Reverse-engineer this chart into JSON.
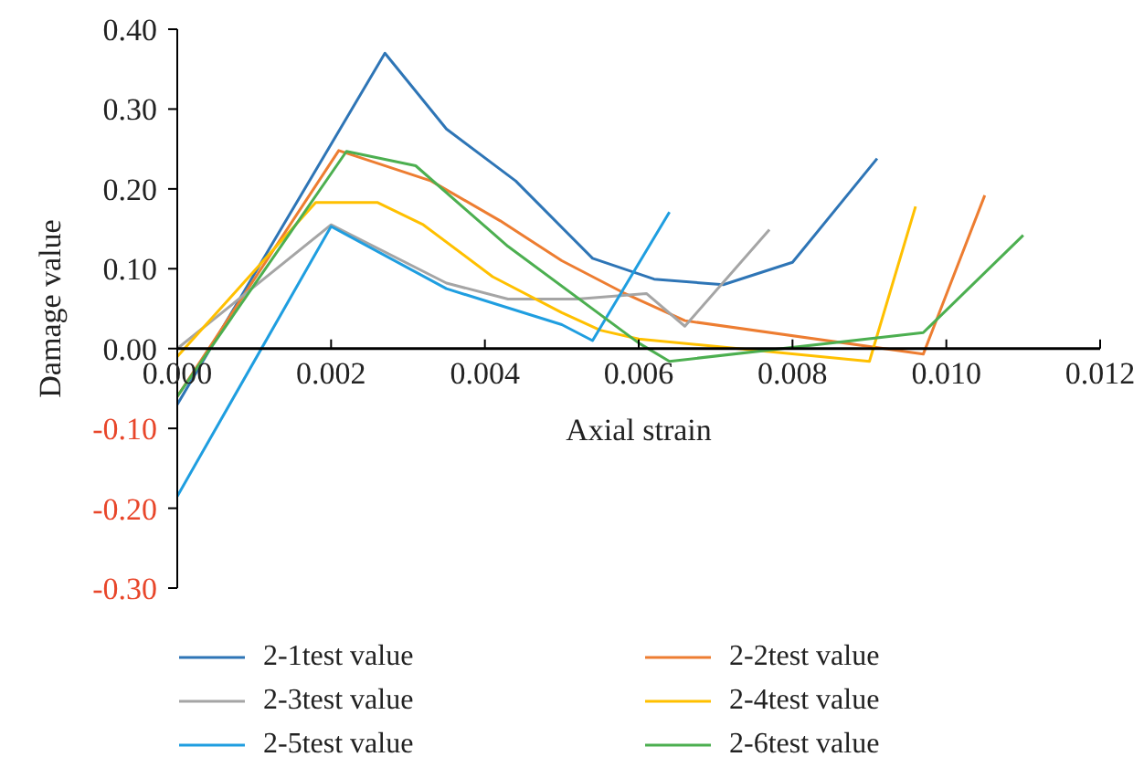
{
  "chart_data": {
    "type": "line",
    "xlabel": "Axial strain",
    "ylabel": "Damage value",
    "xlim": [
      0,
      0.012
    ],
    "xticks": [
      {
        "value": 0,
        "label": "0.000"
      },
      {
        "value": 0.002,
        "label": "0.002"
      },
      {
        "value": 0.004,
        "label": "0.004"
      },
      {
        "value": 0.006,
        "label": "0.006"
      },
      {
        "value": 0.008,
        "label": "0.008"
      },
      {
        "value": 0.01,
        "label": "0.010"
      },
      {
        "value": 0.012,
        "label": "0.012"
      }
    ],
    "ylim": [
      -0.3,
      0.4
    ],
    "yticks": [
      {
        "value": -0.3,
        "label": "-0.30"
      },
      {
        "value": -0.2,
        "label": "-0.20"
      },
      {
        "value": -0.1,
        "label": "-0.10"
      },
      {
        "value": 0,
        "label": "0.00"
      },
      {
        "value": 0.1,
        "label": "0.10"
      },
      {
        "value": 0.2,
        "label": "0.20"
      },
      {
        "value": 0.3,
        "label": "0.30"
      },
      {
        "value": 0.4,
        "label": "0.40"
      }
    ],
    "legend": "bottom",
    "marker": "none",
    "line_style": "solid",
    "series": [
      {
        "name": "2-1test value",
        "color": "#2e75b6",
        "x": [
          0,
          0.0027,
          0.0035,
          0.0044,
          0.0054,
          0.0062,
          0.0071,
          0.008,
          0.0091
        ],
        "values": [
          -0.07,
          0.37,
          0.275,
          0.21,
          0.113,
          0.087,
          0.08,
          0.108,
          0.238
        ]
      },
      {
        "name": "2-2test value",
        "color": "#ed7d31",
        "x": [
          0,
          0.0021,
          0.0033,
          0.0042,
          0.005,
          0.0058,
          0.0066,
          0.0097,
          0.0105
        ],
        "values": [
          -0.06,
          0.248,
          0.21,
          0.16,
          0.11,
          0.07,
          0.035,
          -0.007,
          0.192
        ]
      },
      {
        "name": "2-3test value",
        "color": "#a5a5a5",
        "x": [
          0,
          0.002,
          0.0035,
          0.0043,
          0.0052,
          0.0061,
          0.0066,
          0.0077
        ],
        "values": [
          0,
          0.155,
          0.082,
          0.062,
          0.062,
          0.069,
          0.028,
          0.149
        ]
      },
      {
        "name": "2-4test value",
        "color": "#ffc000",
        "x": [
          0,
          0.0018,
          0.0026,
          0.0032,
          0.0041,
          0.005,
          0.0055,
          0.006,
          0.009,
          0.0096
        ],
        "values": [
          -0.01,
          0.183,
          0.183,
          0.155,
          0.09,
          0.045,
          0.023,
          0.012,
          -0.016,
          0.178
        ]
      },
      {
        "name": "2-5test value",
        "color": "#1f9ee0",
        "x": [
          0,
          0.002,
          0.0035,
          0.005,
          0.0054,
          0.0064
        ],
        "values": [
          -0.185,
          0.153,
          0.075,
          0.03,
          0.01,
          0.171
        ]
      },
      {
        "name": "2-6test value",
        "color": "#4caf50",
        "x": [
          0,
          0.0022,
          0.0031,
          0.0043,
          0.006,
          0.0064,
          0.0097,
          0.011
        ],
        "values": [
          -0.06,
          0.247,
          0.229,
          0.128,
          0.007,
          -0.016,
          0.02,
          0.142
        ]
      }
    ]
  }
}
